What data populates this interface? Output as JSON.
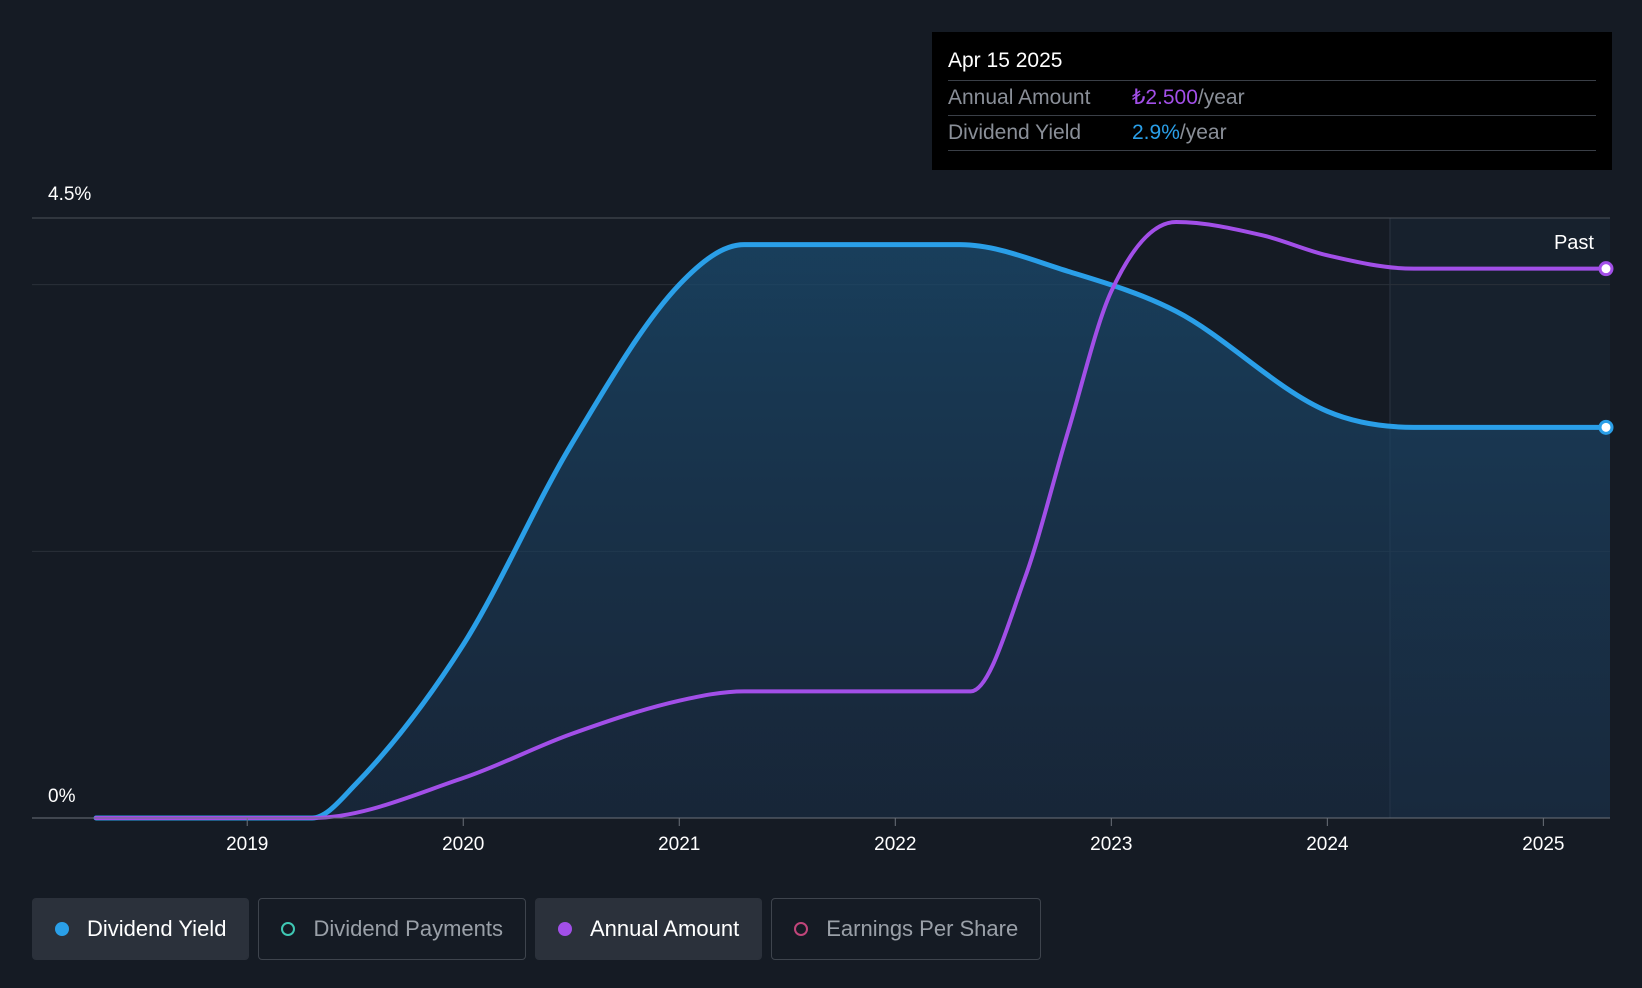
{
  "tooltip": {
    "date": "Apr 15 2025",
    "rows": [
      {
        "label": "Annual Amount",
        "value": "₺2.500",
        "unit": "/year"
      },
      {
        "label": "Dividend Yield",
        "value": "2.9%",
        "unit": "/year"
      }
    ]
  },
  "past_label": "Past",
  "legend": [
    {
      "label": "Dividend Yield",
      "color": "#2a9fe8",
      "active": true
    },
    {
      "label": "Dividend Payments",
      "color": "#3fc8b4",
      "active": false
    },
    {
      "label": "Annual Amount",
      "color": "#a24fe8",
      "active": true
    },
    {
      "label": "Earnings Per Share",
      "color": "#c0457a",
      "active": false
    }
  ],
  "colors": {
    "yield": "#2a9fe8",
    "amount": "#a24fe8",
    "background": "#151b24"
  },
  "chart_data": {
    "type": "area",
    "y_axis": {
      "min_label": "0%",
      "max_label": "4.5%",
      "range": [
        0,
        4.5
      ]
    },
    "x_ticks": [
      "2019",
      "2020",
      "2021",
      "2022",
      "2023",
      "2024",
      "2025"
    ],
    "x_range": [
      2018.3,
      2025.29
    ],
    "past_from": 2024.29,
    "series": [
      {
        "name": "Dividend Yield",
        "points": [
          [
            2018.3,
            0
          ],
          [
            2019.3,
            0
          ],
          [
            2019.5,
            0.25
          ],
          [
            2020.0,
            1.3
          ],
          [
            2020.5,
            2.8
          ],
          [
            2021.0,
            4.0
          ],
          [
            2021.3,
            4.3
          ],
          [
            2022.3,
            4.3
          ],
          [
            2022.8,
            4.1
          ],
          [
            2023.3,
            3.8
          ],
          [
            2024.0,
            3.05
          ],
          [
            2024.4,
            2.93
          ],
          [
            2025.29,
            2.93
          ]
        ]
      },
      {
        "name": "Annual Amount",
        "points": [
          [
            2018.3,
            0
          ],
          [
            2019.3,
            0
          ],
          [
            2020.0,
            0.3
          ],
          [
            2020.5,
            0.63
          ],
          [
            2021.0,
            0.88
          ],
          [
            2021.3,
            0.95
          ],
          [
            2022.35,
            0.95
          ],
          [
            2022.6,
            1.8
          ],
          [
            2022.8,
            2.9
          ],
          [
            2023.0,
            3.95
          ],
          [
            2023.3,
            4.47
          ],
          [
            2023.7,
            4.37
          ],
          [
            2024.0,
            4.22
          ],
          [
            2024.4,
            4.12
          ],
          [
            2025.29,
            4.12
          ]
        ]
      }
    ]
  }
}
